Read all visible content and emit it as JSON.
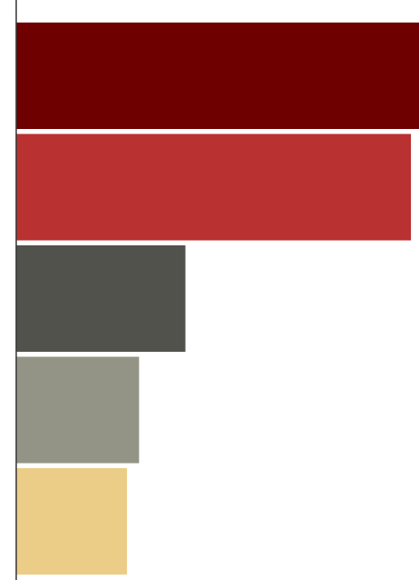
{
  "chart_data": {
    "type": "bar",
    "orientation": "horizontal",
    "categories": [
      "",
      "",
      "",
      "",
      ""
    ],
    "values": [
      100,
      98,
      42,
      30.5,
      27.5
    ],
    "xlim": [
      0,
      100
    ],
    "grid": false,
    "legend": "none",
    "colors": [
      "#6e0000",
      "#b93131",
      "#51524c",
      "#949486",
      "#eccd87"
    ]
  }
}
